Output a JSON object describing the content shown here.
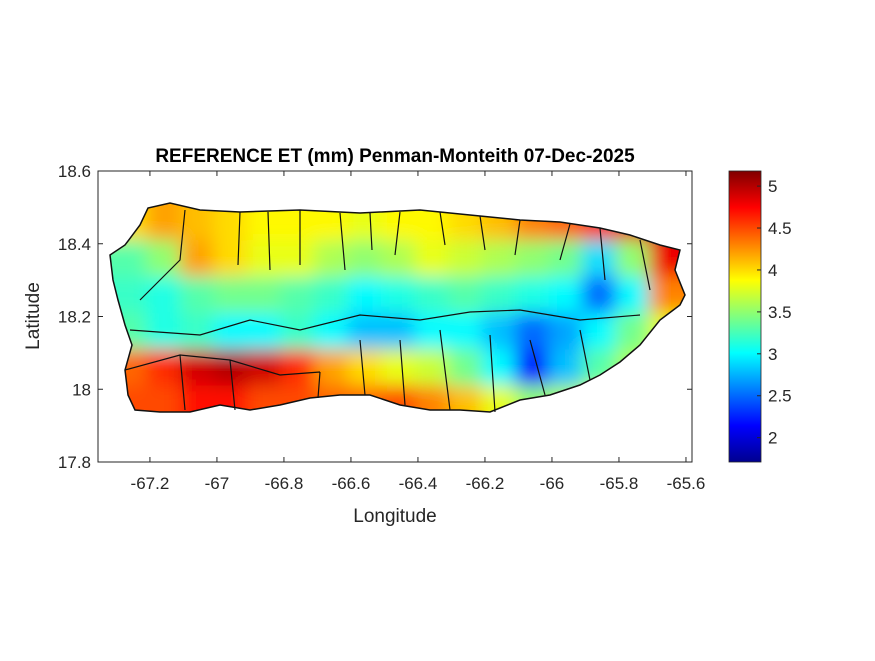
{
  "chart_data": {
    "type": "heatmap",
    "title": "REFERENCE ET (mm) Penman-Monteith 07-Dec-2025",
    "xlabel": "Longitude",
    "ylabel": "Latitude",
    "xlim": [
      -67.355,
      -65.582
    ],
    "ylim": [
      17.8,
      18.6
    ],
    "xticks": [
      -67.2,
      -67,
      -66.8,
      -66.6,
      -66.4,
      -66.2,
      -66,
      -65.8,
      -65.6
    ],
    "xtick_labels": [
      "-67.2",
      "-67",
      "-66.8",
      "-66.6",
      "-66.4",
      "-66.2",
      "-66",
      "-65.8",
      "-65.6"
    ],
    "yticks": [
      17.8,
      18,
      18.2,
      18.4,
      18.6
    ],
    "ytick_labels": [
      "17.8",
      "18",
      "18.2",
      "18.4",
      "18.6"
    ],
    "colorbar": {
      "range": [
        1.71,
        5.18
      ],
      "ticks": [
        2,
        2.5,
        3,
        3.5,
        4,
        4.5,
        5
      ],
      "tick_labels": [
        "2",
        "2.5",
        "3",
        "3.5",
        "4",
        "4.5",
        "5"
      ],
      "colormap": "jet"
    },
    "grid": {
      "lon": [
        -67.25,
        -67.15,
        -67.05,
        -66.95,
        -66.85,
        -66.75,
        -66.65,
        -66.55,
        -66.45,
        -66.35,
        -66.25,
        -66.15,
        -66.05,
        -65.95,
        -65.85,
        -65.75,
        -65.65
      ],
      "lat": [
        18.45,
        18.35,
        18.25,
        18.15,
        18.05,
        17.95
      ],
      "values": [
        [
          4.0,
          4.2,
          4.1,
          4.0,
          3.9,
          3.9,
          3.9,
          3.8,
          3.9,
          3.9,
          4.0,
          4.1,
          4.3,
          4.4,
          4.6,
          4.8,
          4.9
        ],
        [
          3.3,
          3.5,
          4.2,
          4.0,
          3.8,
          3.8,
          3.6,
          3.5,
          3.6,
          3.8,
          3.7,
          3.6,
          3.5,
          3.4,
          2.9,
          3.5,
          4.8
        ],
        [
          3.2,
          3.1,
          3.3,
          3.4,
          3.4,
          3.3,
          3.2,
          3.0,
          3.1,
          3.2,
          3.3,
          3.2,
          3.1,
          3.0,
          2.5,
          3.0,
          4.3
        ],
        [
          3.3,
          3.1,
          3.2,
          3.0,
          3.0,
          3.2,
          3.0,
          2.8,
          2.8,
          3.0,
          3.0,
          2.8,
          2.5,
          2.7,
          3.0,
          3.4,
          3.8
        ],
        [
          4.4,
          4.6,
          4.9,
          5.0,
          4.9,
          4.6,
          4.2,
          4.0,
          3.8,
          3.7,
          3.4,
          3.0,
          2.2,
          2.8,
          3.3,
          3.6,
          3.8
        ],
        [
          4.5,
          4.5,
          4.7,
          4.7,
          4.5,
          4.5,
          4.4,
          4.4,
          4.5,
          4.3,
          4.1,
          3.8,
          3.5,
          3.6,
          3.8,
          4.0,
          4.1
        ]
      ]
    }
  }
}
